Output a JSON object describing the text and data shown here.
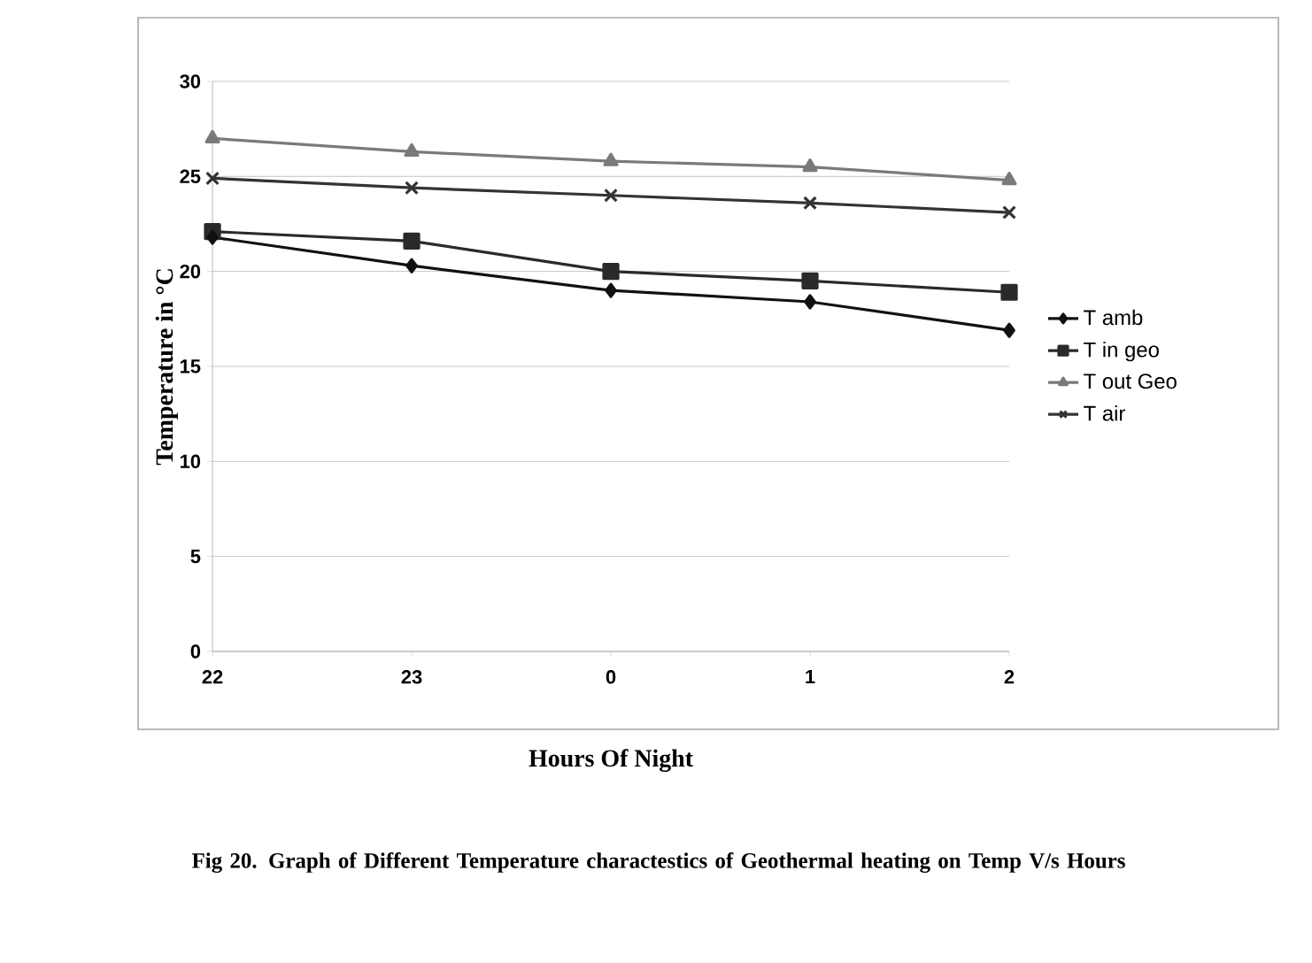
{
  "chart_data": {
    "type": "line",
    "xlabel": "Hours Of Night",
    "ylabel": "Temperature in °C",
    "annotations": [
      "Fig 20. Graph of Different Temperature charactestics of Geothermal heating on Temp V/s Hours"
    ],
    "categories": [
      "22",
      "23",
      "0",
      "1",
      "2"
    ],
    "series": [
      {
        "name": "T amb",
        "color": "#111111",
        "marker": "diamond",
        "values": [
          21.8,
          20.3,
          19.0,
          18.4,
          16.9
        ]
      },
      {
        "name": "T in geo",
        "color": "#2a2a2a",
        "marker": "square",
        "values": [
          22.1,
          21.6,
          20.0,
          19.5,
          18.9
        ]
      },
      {
        "name": "T out Geo",
        "color": "#7a7a7a",
        "marker": "triangle",
        "values": [
          27.0,
          26.3,
          25.8,
          25.5,
          24.8
        ]
      },
      {
        "name": "T air",
        "color": "#333333",
        "marker": "cross",
        "values": [
          24.9,
          24.4,
          24.0,
          23.6,
          23.1
        ]
      }
    ],
    "ylim": [
      0,
      30
    ],
    "yticks": [
      0,
      5,
      10,
      15,
      20,
      25,
      30
    ],
    "grid": "y",
    "legend": "right"
  }
}
